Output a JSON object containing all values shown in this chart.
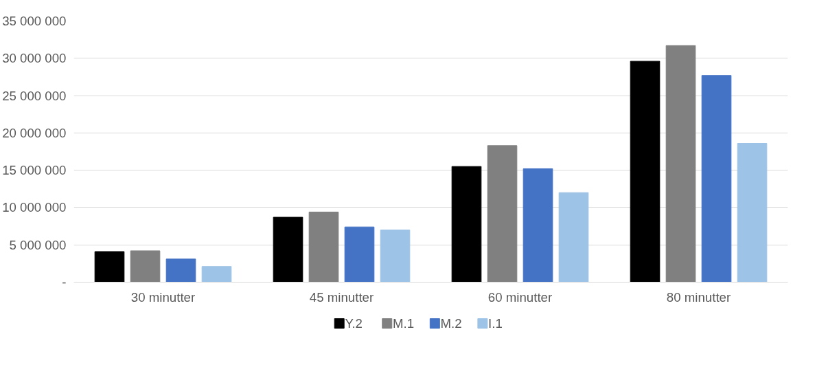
{
  "chart_data": {
    "type": "bar",
    "categories": [
      "30 minutter",
      "45 minutter",
      "60 minutter",
      "80 minutter"
    ],
    "series": [
      {
        "name": "Y.2",
        "color": "#000000",
        "values": [
          4100000,
          8700000,
          15500000,
          29600000
        ]
      },
      {
        "name": "M.1",
        "color": "#808080",
        "values": [
          4200000,
          9400000,
          18300000,
          31700000
        ]
      },
      {
        "name": "M.2",
        "color": "#4472c4",
        "values": [
          3100000,
          7400000,
          15200000,
          27700000
        ]
      },
      {
        "name": "I.1",
        "color": "#9dc3e6",
        "values": [
          2100000,
          7000000,
          12000000,
          18600000
        ]
      }
    ],
    "ylim": [
      0,
      35000000
    ],
    "yticks": [
      {
        "value": 0,
        "label": "-"
      },
      {
        "value": 5000000,
        "label": "5 000 000"
      },
      {
        "value": 10000000,
        "label": "10 000 000"
      },
      {
        "value": 15000000,
        "label": "15 000 000"
      },
      {
        "value": 20000000,
        "label": "20 000 000"
      },
      {
        "value": 25000000,
        "label": "25 000 000"
      },
      {
        "value": 30000000,
        "label": "30 000 000"
      },
      {
        "value": 35000000,
        "label": "35 000 000"
      }
    ],
    "grid": "y",
    "legend": "bottom"
  }
}
